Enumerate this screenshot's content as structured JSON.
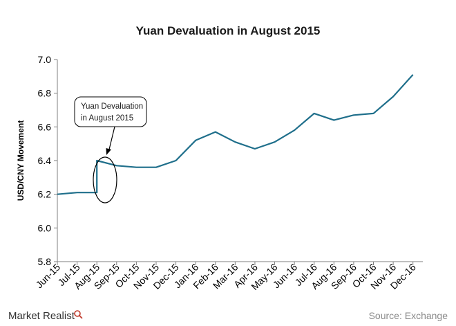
{
  "brand": {
    "name": "Market Realist"
  },
  "source": "Source: Exchange",
  "colors": {
    "line": "#1f6f8b",
    "axis": "#7f7f7f",
    "text": "#000000"
  },
  "chart_data": {
    "type": "line",
    "title": "Yuan Devaluation in August 2015",
    "xlabel": "",
    "ylabel": "USD/CNY Movement",
    "ylim": [
      5.8,
      7.0
    ],
    "yticks": [
      "5.8",
      "6.0",
      "6.2",
      "6.4",
      "6.6",
      "6.8",
      "7.0"
    ],
    "x_tick_labels": [
      "Jun-15",
      "Jul-15",
      "Aug-15",
      "Sep-15",
      "Oct-15",
      "Nov-15",
      "Dec-15",
      "Jan-16",
      "Feb-16",
      "Mar-16",
      "Apr-16",
      "May-16",
      "Jun-16",
      "Jul-16",
      "Aug-16",
      "Sep-16",
      "Oct-16",
      "Nov-16",
      "Dec-16"
    ],
    "grid": false,
    "legend": "none",
    "annotation": {
      "lines": [
        "Yuan Devaluation",
        "in August 2015"
      ],
      "points_to": "Aug-15"
    },
    "series": [
      {
        "values": [
          [
            "Jun-15",
            6.2
          ],
          [
            "Jul-15",
            6.21
          ],
          [
            "Aug-15",
            6.21
          ],
          [
            "Aug-15",
            6.4
          ],
          [
            "Sep-15",
            6.37
          ],
          [
            "Oct-15",
            6.36
          ],
          [
            "Nov-15",
            6.36
          ],
          [
            "Dec-15",
            6.4
          ],
          [
            "Jan-16",
            6.52
          ],
          [
            "Feb-16",
            6.57
          ],
          [
            "Mar-16",
            6.51
          ],
          [
            "Apr-16",
            6.47
          ],
          [
            "May-16",
            6.51
          ],
          [
            "Jun-16",
            6.58
          ],
          [
            "Jul-16",
            6.68
          ],
          [
            "Aug-16",
            6.64
          ],
          [
            "Sep-16",
            6.67
          ],
          [
            "Oct-16",
            6.68
          ],
          [
            "Nov-16",
            6.78
          ],
          [
            "Dec-16",
            6.91
          ]
        ]
      }
    ]
  }
}
